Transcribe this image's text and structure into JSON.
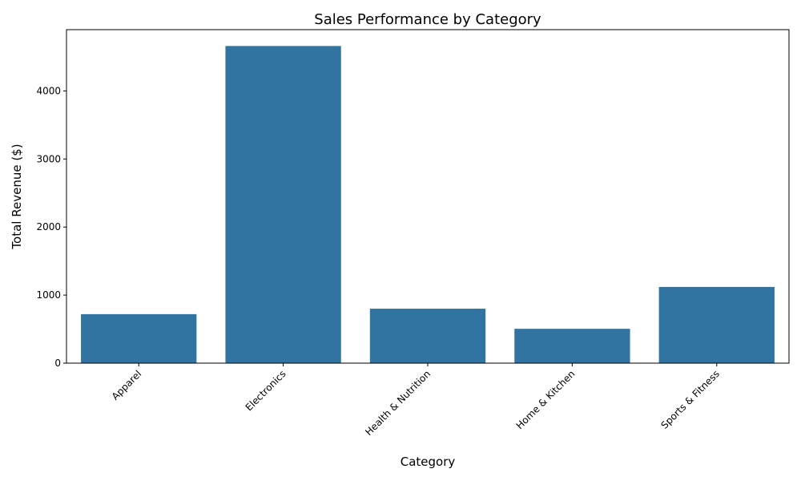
{
  "chart_data": {
    "type": "bar",
    "title": "Sales Performance by Category",
    "xlabel": "Category",
    "ylabel": "Total Revenue ($)",
    "categories": [
      "Apparel",
      "Electronics",
      "Health & Nutrition",
      "Home & Kitchen",
      "Sports & Fitness"
    ],
    "values": [
      720,
      4660,
      800,
      505,
      1120
    ],
    "ylim": [
      0,
      4900
    ],
    "yticks": [
      0,
      1000,
      2000,
      3000,
      4000
    ],
    "grid": false,
    "bar_color": "#3274a1",
    "x_tick_rotation_deg": 45
  }
}
